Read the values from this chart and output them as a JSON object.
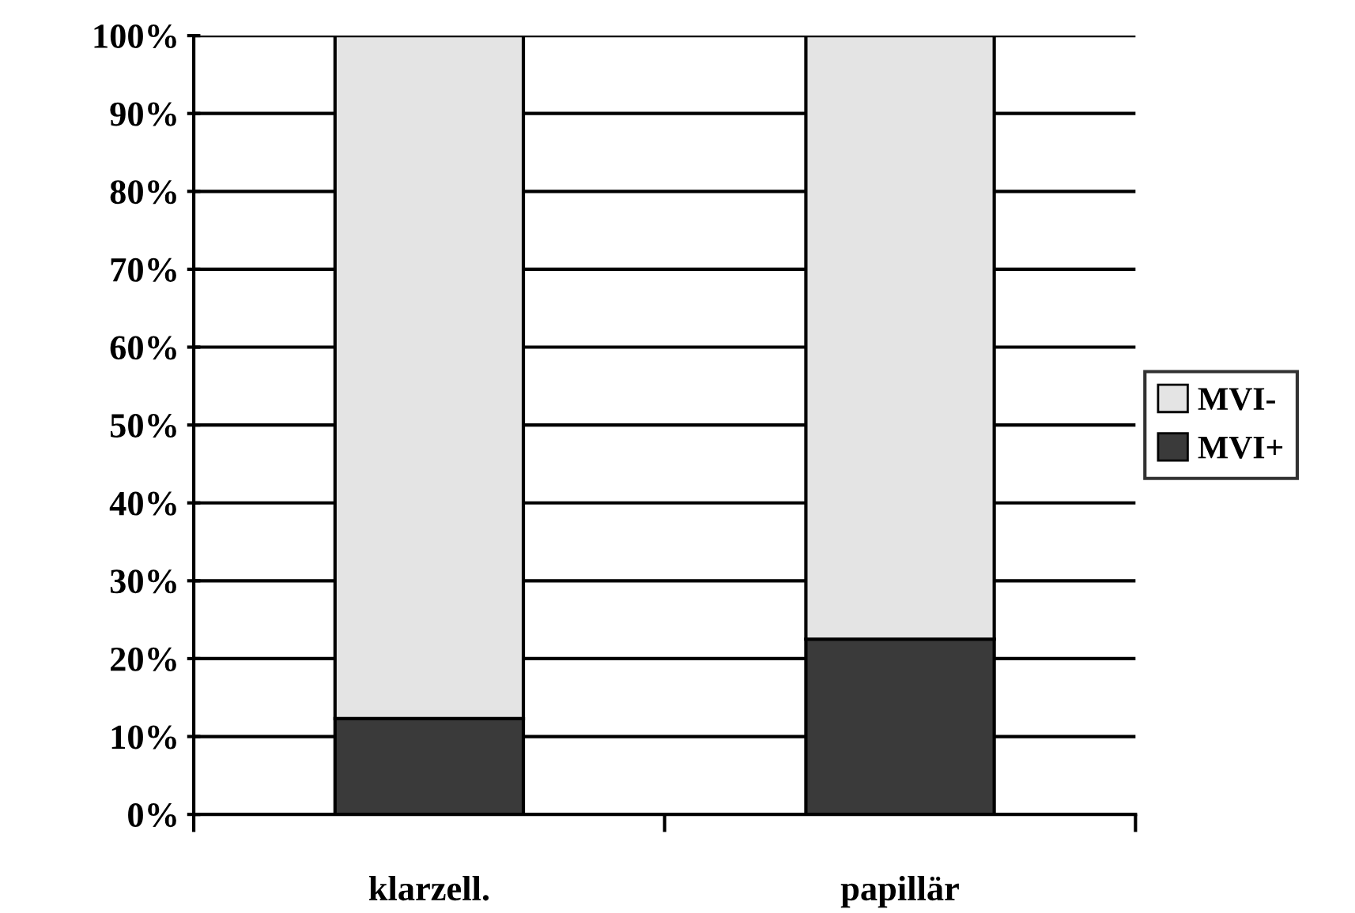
{
  "chart_data": {
    "type": "bar",
    "stacked": true,
    "categories": [
      "klarzell.",
      "papillär"
    ],
    "series": [
      {
        "name": "MVI+",
        "color": "#3a3a3a",
        "values": [
          12.3,
          22.5
        ]
      },
      {
        "name": "MVI-",
        "color": "#e4e4e4",
        "values": [
          87.7,
          77.5
        ]
      }
    ],
    "ylim": [
      0,
      100
    ],
    "yticks": [
      {
        "value": 0,
        "label": "0%"
      },
      {
        "value": 10,
        "label": "10%"
      },
      {
        "value": 20,
        "label": "20%"
      },
      {
        "value": 30,
        "label": "30%"
      },
      {
        "value": 40,
        "label": "40%"
      },
      {
        "value": 50,
        "label": "50%"
      },
      {
        "value": 60,
        "label": "60%"
      },
      {
        "value": 70,
        "label": "70%"
      },
      {
        "value": 80,
        "label": "80%"
      },
      {
        "value": 90,
        "label": "90%"
      },
      {
        "value": 100,
        "label": "100%"
      }
    ],
    "grid": "y",
    "legend": "right"
  }
}
